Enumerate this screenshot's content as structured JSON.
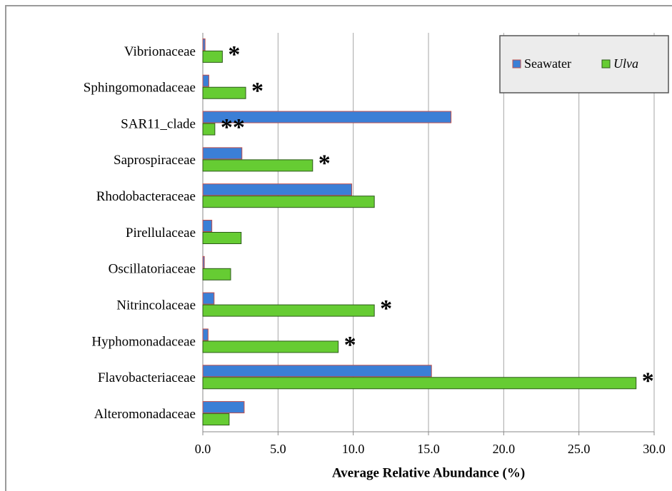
{
  "chart_data": {
    "type": "hbar",
    "categories": [
      "Vibrionaceae",
      "Sphingomonadaceae",
      "SAR11_clade",
      "Saprospiraceae",
      "Rhodobacteraceae",
      "Pirellulaceae",
      "Oscillatoriaceae",
      "Nitrincolaceae",
      "Hyphomonadaceae",
      "Flavobacteriaceae",
      "Alteromonadaceae"
    ],
    "series": [
      {
        "name": "Seawater",
        "color": "#3b7fd6",
        "values": [
          0.15,
          0.4,
          16.5,
          2.6,
          9.9,
          0.6,
          0.1,
          0.75,
          0.35,
          15.2,
          2.75
        ]
      },
      {
        "name": "Ulva",
        "color": "#66cc33",
        "values": [
          1.3,
          2.85,
          0.8,
          7.3,
          11.4,
          2.55,
          1.85,
          11.4,
          9.0,
          28.8,
          1.75
        ]
      }
    ],
    "annotations": [
      "*",
      "*",
      "**",
      "*",
      null,
      null,
      null,
      "*",
      "*",
      "*",
      null
    ],
    "x_label": "Average Relative Abundance (%)",
    "xlim": [
      0,
      30
    ],
    "xticks": [
      {
        "value": 0,
        "label": "0.0"
      },
      {
        "value": 5,
        "label": "5.0"
      },
      {
        "value": 10,
        "label": "10.0"
      },
      {
        "value": 15,
        "label": "15.0"
      },
      {
        "value": 20,
        "label": "20.0"
      },
      {
        "value": 25,
        "label": "25.0"
      },
      {
        "value": 30,
        "label": "30.0"
      }
    ],
    "grid": true,
    "legend": "top-right"
  }
}
